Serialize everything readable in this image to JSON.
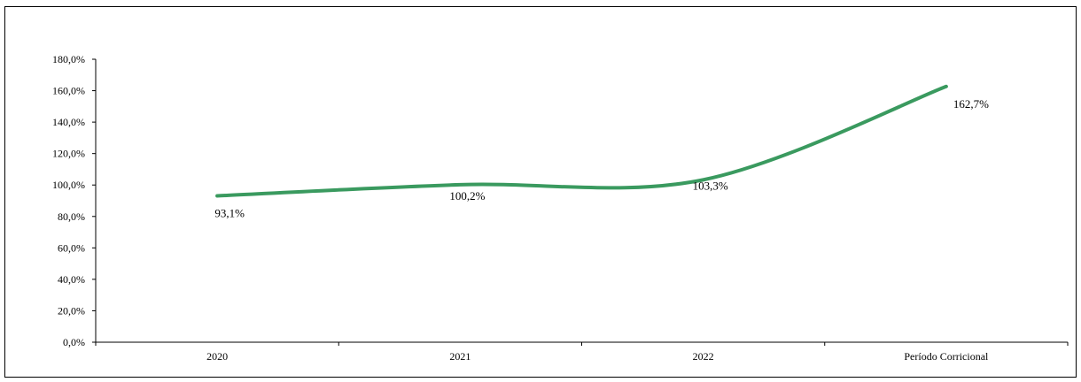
{
  "chart_data": {
    "type": "line",
    "title": "",
    "xlabel": "",
    "ylabel": "",
    "categories": [
      "2020",
      "2021",
      "2022",
      "Período Corricional"
    ],
    "series": [
      {
        "values": [
          93.1,
          100.2,
          103.3,
          162.7
        ],
        "color": "#3a9a5f"
      }
    ],
    "data_labels": [
      "93,1%",
      "100,2%",
      "103,3%",
      "162,7%"
    ],
    "ylim": [
      0,
      180
    ],
    "y_ticks": [
      {
        "value": 0,
        "label": "0,0%"
      },
      {
        "value": 20,
        "label": "20,0%"
      },
      {
        "value": 40,
        "label": "40,0%"
      },
      {
        "value": 60,
        "label": "60,0%"
      },
      {
        "value": 80,
        "label": "80,0%"
      },
      {
        "value": 100,
        "label": "100,0%"
      },
      {
        "value": 120,
        "label": "120,0%"
      },
      {
        "value": 140,
        "label": "140,0%"
      },
      {
        "value": 160,
        "label": "160,0%"
      },
      {
        "value": 180,
        "label": "180,0%"
      }
    ],
    "grid": false,
    "smooth": true,
    "legend": "none"
  }
}
